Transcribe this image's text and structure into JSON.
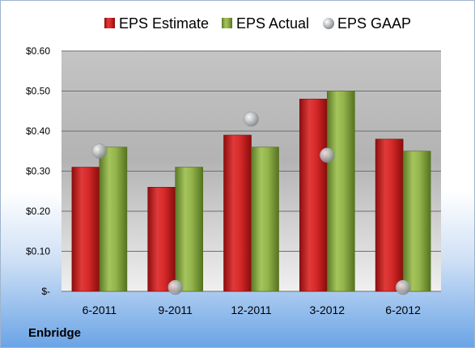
{
  "company": "Enbridge",
  "chart_data": {
    "type": "bar",
    "categories": [
      "6-2011",
      "9-2011",
      "12-2011",
      "3-2012",
      "6-2012"
    ],
    "series": [
      {
        "name": "EPS Estimate",
        "type": "bar",
        "color": "#d42a2a",
        "values": [
          0.31,
          0.26,
          0.39,
          0.48,
          0.38
        ]
      },
      {
        "name": "EPS Actual",
        "type": "bar",
        "color": "#8fb04a",
        "values": [
          0.36,
          0.31,
          0.36,
          0.5,
          0.35
        ]
      },
      {
        "name": "EPS GAAP",
        "type": "scatter",
        "color": "#c0c4c8",
        "values": [
          0.35,
          0.01,
          0.43,
          0.34,
          0.01
        ]
      }
    ],
    "y_ticks": [
      "$-",
      "$0.10",
      "$0.20",
      "$0.30",
      "$0.40",
      "$0.50",
      "$0.60"
    ],
    "ylim": [
      0,
      0.6
    ],
    "grid": true,
    "legend_position": "top"
  }
}
